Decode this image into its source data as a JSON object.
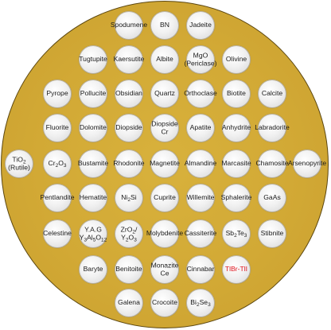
{
  "samples": [
    {
      "name": "Spodumene"
    },
    {
      "name": "BN"
    },
    {
      "name": "Jadeite"
    },
    {
      "name": "Tugtupite"
    },
    {
      "name": "Kaersutite"
    },
    {
      "name": "Albite"
    },
    {
      "name": "MgO",
      "line2": "(Periclase)"
    },
    {
      "name": "Olivine"
    },
    {
      "name": "Pyrope"
    },
    {
      "name": "Pollucite"
    },
    {
      "name": "Obsidian"
    },
    {
      "name": "Quartz"
    },
    {
      "name": "Orthoclase"
    },
    {
      "name": "Biotite"
    },
    {
      "name": "Calcite"
    },
    {
      "name": "Fluorite"
    },
    {
      "name": "Dolomite"
    },
    {
      "name": "Diopside"
    },
    {
      "name": "Diopside",
      "line2": "Cr"
    },
    {
      "name": "Apatite"
    },
    {
      "name": "Anhydrite"
    },
    {
      "name": "Labradorite"
    },
    {
      "name": "TiO",
      "sub": "2",
      "line2": "(Rutile)"
    },
    {
      "name": "Cr",
      "sub": "2",
      "tail": "O",
      "sub2": "3"
    },
    {
      "name": "Bustamite"
    },
    {
      "name": "Rhodonite"
    },
    {
      "name": "Magnetite"
    },
    {
      "name": "Almandine"
    },
    {
      "name": "Marcasite"
    },
    {
      "name": "Chamosite"
    },
    {
      "name": "Arsenopyrite"
    },
    {
      "name": "Pentlandite"
    },
    {
      "name": "Hematite"
    },
    {
      "name": "Ni",
      "sub": "2",
      "tail": "Si"
    },
    {
      "name": "Cuprite"
    },
    {
      "name": "Willemite"
    },
    {
      "name": "Sphalerite"
    },
    {
      "name": "GaAs"
    },
    {
      "name": "Celestine"
    },
    {
      "name": "Y.A.G",
      "line2": "Y3Al5O12"
    },
    {
      "name": "ZrO2/",
      "line2": "Y2O3"
    },
    {
      "name": "Molybdenite"
    },
    {
      "name": "Cassiterite"
    },
    {
      "name": "Sb",
      "sub": "2",
      "tail": "Te",
      "sub2": "3"
    },
    {
      "name": "Stibnite"
    },
    {
      "name": "Baryte"
    },
    {
      "name": "Benitoite"
    },
    {
      "name": "Monazite",
      "line2": "Ce"
    },
    {
      "name": "Cinnabar"
    },
    {
      "name": "TlBr-TlI",
      "color": "#e0141e"
    },
    {
      "name": "Galena"
    },
    {
      "name": "Crocoite"
    },
    {
      "name": "Bi",
      "sub": "2",
      "tail": "Se",
      "sub2": "3"
    }
  ],
  "colors": {
    "disc": "#d2a935",
    "highlight_label": "#e0141e"
  }
}
